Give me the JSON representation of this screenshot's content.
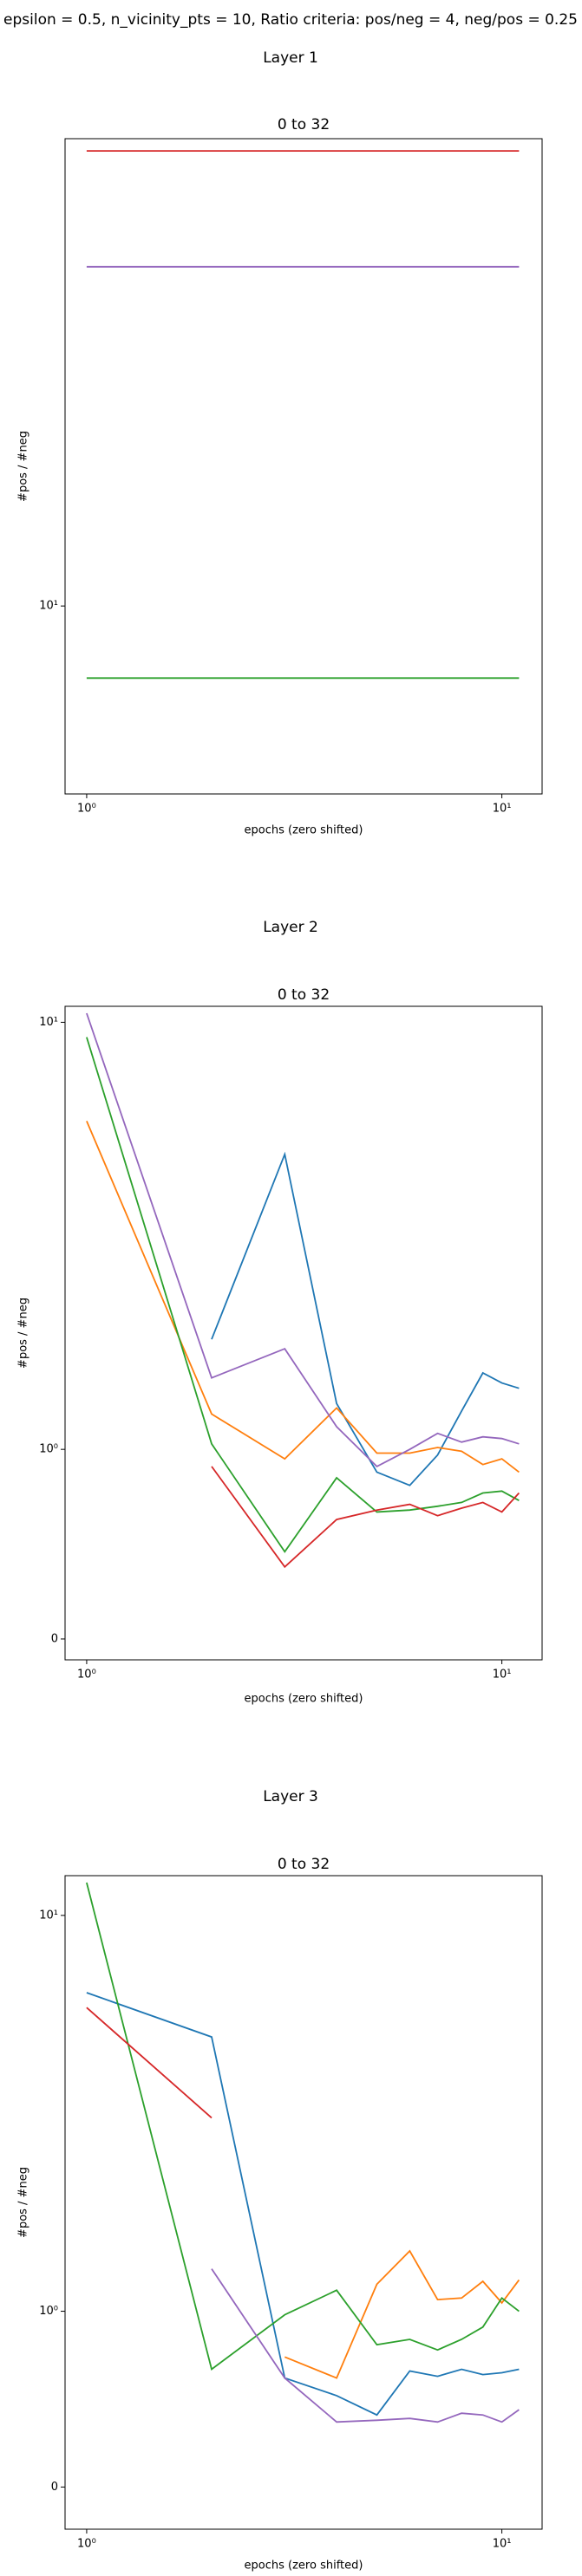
{
  "title": "epsilon = 0.5, n_vicinity_pts = 10, Ratio criteria: pos/neg = 4, neg/pos = 0.25",
  "chart_data": [
    {
      "type": "line",
      "suptitle": "Layer 1",
      "title": "0 to 32",
      "xlabel": "epochs (zero shifted)",
      "ylabel": "#pos / #neg",
      "xscale": "log",
      "yscale": "log",
      "xlim": [
        0.887,
        12.5
      ],
      "ylim": [
        4.4,
        77
      ],
      "xticks": [
        {
          "value": 1,
          "label": "10⁰"
        },
        {
          "value": 10,
          "label": "10¹"
        }
      ],
      "yticks": [
        {
          "value": 10,
          "label": "10¹"
        }
      ],
      "x": [
        1,
        2,
        3,
        4,
        5,
        6,
        7,
        8,
        9,
        10,
        11
      ],
      "series": [
        {
          "color": "#2ca02c",
          "values": [
            7.3,
            7.3,
            7.3,
            7.3,
            7.3,
            7.3,
            7.3,
            7.3,
            7.3,
            7.3,
            7.3
          ]
        },
        {
          "color": "#d62728",
          "values": [
            73,
            73,
            73,
            73,
            73,
            73,
            73,
            73,
            73,
            73,
            73
          ]
        },
        {
          "color": "#9467bd",
          "values": [
            44,
            44,
            44,
            44,
            44,
            44,
            44,
            44,
            44,
            44,
            44
          ]
        }
      ]
    },
    {
      "type": "line",
      "suptitle": "Layer 2",
      "title": "0 to 32",
      "xlabel": "epochs (zero shifted)",
      "ylabel": "#pos / #neg",
      "xscale": "log",
      "yscale": "symlog",
      "linthresh": 1,
      "xlim": [
        0.887,
        12.5
      ],
      "ylim": [
        -0.11,
        10.9
      ],
      "xticks": [
        {
          "value": 1,
          "label": "10⁰"
        },
        {
          "value": 10,
          "label": "10¹"
        }
      ],
      "yticks": [
        0,
        {
          "value": 1,
          "label": "10⁰"
        },
        {
          "value": 10,
          "label": "10¹"
        }
      ],
      "x": [
        1,
        2,
        3,
        4,
        5,
        6,
        7,
        8,
        9,
        10,
        11
      ],
      "series": [
        {
          "color": "#1f77b4",
          "values": [
            null,
            1.81,
            4.91,
            1.28,
            0.88,
            0.81,
            0.97,
            1.23,
            1.51,
            1.43,
            1.39
          ]
        },
        {
          "color": "#ff7f0e",
          "values": [
            5.87,
            1.21,
            0.95,
            1.25,
            0.98,
            0.98,
            1.01,
            0.99,
            0.92,
            0.95,
            0.88
          ]
        },
        {
          "color": "#2ca02c",
          "values": [
            9.23,
            1.03,
            0.46,
            0.85,
            0.67,
            0.68,
            0.7,
            0.72,
            0.77,
            0.78,
            0.73
          ]
        },
        {
          "color": "#d62728",
          "values": [
            null,
            0.91,
            0.38,
            0.63,
            0.68,
            0.71,
            0.65,
            0.69,
            0.72,
            0.67,
            0.77
          ]
        },
        {
          "color": "#9467bd",
          "values": [
            10.5,
            1.47,
            1.72,
            1.13,
            0.91,
            1.0,
            1.09,
            1.04,
            1.07,
            1.06,
            1.03
          ]
        }
      ]
    },
    {
      "type": "line",
      "suptitle": "Layer 3",
      "title": "0 to 32",
      "xlabel": "epochs (zero shifted)",
      "ylabel": "#pos / #neg",
      "xscale": "log",
      "yscale": "symlog",
      "linthresh": 1,
      "xlim": [
        0.887,
        12.5
      ],
      "ylim": [
        -0.24,
        12.6
      ],
      "xticks": [
        {
          "value": 1,
          "label": "10⁰"
        },
        {
          "value": 10,
          "label": "10¹"
        }
      ],
      "yticks": [
        0,
        {
          "value": 1,
          "label": "10⁰"
        },
        {
          "value": 10,
          "label": "10¹"
        }
      ],
      "x": [
        1,
        2,
        3,
        4,
        5,
        6,
        7,
        8,
        9,
        10,
        11
      ],
      "series": [
        {
          "color": "#1f77b4",
          "values": [
            6.38,
            4.93,
            0.62,
            0.52,
            0.41,
            0.66,
            0.63,
            0.67,
            0.64,
            0.65,
            0.67
          ]
        },
        {
          "color": "#ff7f0e",
          "values": [
            null,
            null,
            0.74,
            0.62,
            1.17,
            1.42,
            1.07,
            1.08,
            1.19,
            1.05,
            1.2
          ]
        },
        {
          "color": "#2ca02c",
          "values": [
            12.1,
            0.67,
            0.98,
            1.13,
            0.81,
            0.84,
            0.78,
            0.84,
            0.91,
            1.08,
            1.0
          ]
        },
        {
          "color": "#d62728",
          "values": [
            5.85,
            3.08,
            null,
            null,
            null,
            null,
            null,
            null,
            null,
            null,
            null
          ]
        },
        {
          "color": "#9467bd",
          "values": [
            null,
            1.28,
            0.62,
            0.37,
            0.38,
            0.39,
            0.37,
            0.42,
            0.41,
            0.37,
            0.44
          ]
        }
      ]
    }
  ]
}
